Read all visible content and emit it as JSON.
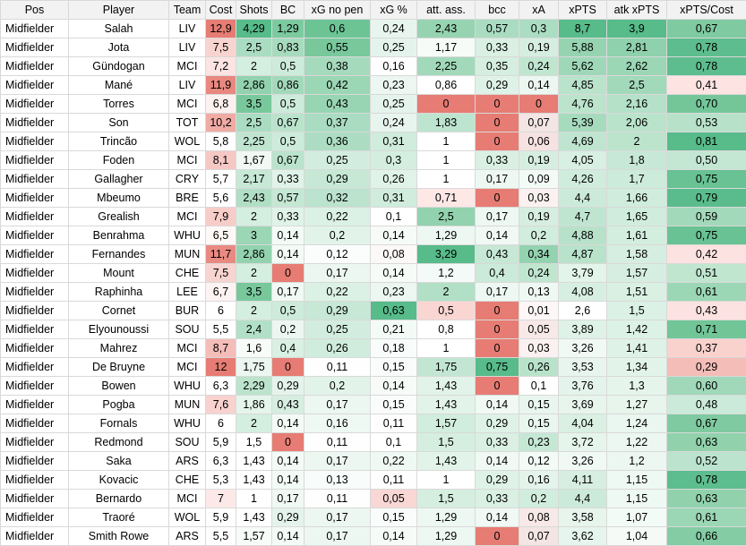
{
  "columns": [
    "Pos",
    "Player",
    "Team",
    "Cost",
    "Shots",
    "BC",
    "xG no pen",
    "xG %",
    "att. ass.",
    "bcc",
    "xA",
    "xPTS",
    "atk xPTS",
    "xPTS/Cost"
  ],
  "rows": [
    {
      "cells": [
        "Midfielder",
        "Salah",
        "LIV",
        "12,9",
        "4,29",
        "1,29",
        "0,6",
        "0,24",
        "2,43",
        "0,57",
        "0,3",
        "8,7",
        "3,9",
        "0,67"
      ],
      "bg": [
        null,
        null,
        null,
        "#e67c73",
        "#57bb8a",
        "#7cca9f",
        "#6cc495",
        "#e8f5ef",
        "#96d4b1",
        "#a9dcc0",
        "#abddc2",
        "#57bb8a",
        "#57bb8a",
        "#7fcaa1"
      ]
    },
    {
      "cells": [
        "Midfielder",
        "Jota",
        "LIV",
        "7,5",
        "2,5",
        "0,83",
        "0,55",
        "0,25",
        "1,17",
        "0,33",
        "0,19",
        "5,88",
        "2,81",
        "0,78"
      ],
      "bg": [
        null,
        null,
        null,
        "#f8d4d0",
        "#aadcc1",
        "#a7dbbe",
        "#78c89c",
        "#e4f4ec",
        "#f6fbf8",
        "#d9f0e3",
        "#d6eee1",
        "#96d4b1",
        "#8ed1ac",
        "#5dbd8e"
      ]
    },
    {
      "cells": [
        "Midfielder",
        "Gündogan",
        "MCI",
        "7,2",
        "2",
        "0,5",
        "0,38",
        "0,16",
        "2,25",
        "0,35",
        "0,24",
        "5,62",
        "2,62",
        "0,78"
      ],
      "bg": [
        null,
        null,
        null,
        "#fbe4e2",
        "#d4eee0",
        "#cdebda",
        "#a6dabd",
        "#fdfefd",
        "#a2d9ba",
        "#d5eee0",
        "#c0e6d0",
        "#9fd8b8",
        "#9bd6b5",
        "#5dbd8e"
      ]
    },
    {
      "cells": [
        "Midfielder",
        "Mané",
        "LIV",
        "11,9",
        "2,86",
        "0,86",
        "0,42",
        "0,23",
        "0,86",
        "0,29",
        "0,14",
        "4,85",
        "2,5",
        "0,41"
      ],
      "bg": [
        null,
        null,
        null,
        "#e98880",
        "#92d2ae",
        "#a3d9bb",
        "#9bd6b5",
        "#ebf7f0",
        "#ffffff",
        "#dff2e8",
        "#ecf7f1",
        "#b9e3cb",
        "#a2d9ba",
        "#fde4e3"
      ]
    },
    {
      "cells": [
        "Midfielder",
        "Torres",
        "MCI",
        "6,8",
        "3,5",
        "0,5",
        "0,43",
        "0,25",
        "0",
        "0",
        "0",
        "4,76",
        "2,16",
        "0,70"
      ],
      "bg": [
        null,
        null,
        null,
        "#fdf1f0",
        "#78c89c",
        "#cdebda",
        "#98d5b3",
        "#e4f4ec",
        "#e67c73",
        "#e67c73",
        "#e67c73",
        "#bce4cd",
        "#b4e1c7",
        "#74c699"
      ]
    },
    {
      "cells": [
        "Midfielder",
        "Son",
        "TOT",
        "10,2",
        "2,5",
        "0,67",
        "0,37",
        "0,24",
        "1,83",
        "0",
        "0,07",
        "5,39",
        "2,06",
        "0,53"
      ],
      "bg": [
        null,
        null,
        null,
        "#f0aba5",
        "#aadcc1",
        "#bae3cc",
        "#a9dcc0",
        "#e8f5ef",
        "#bde4ce",
        "#e67c73",
        "#f3e5e4",
        "#a7dbbe",
        "#b9e3cb",
        "#b7e2c9"
      ]
    },
    {
      "cells": [
        "Midfielder",
        "Trincão",
        "WOL",
        "5,8",
        "2,25",
        "0,5",
        "0,36",
        "0,31",
        "1",
        "0",
        "0,06",
        "4,69",
        "2",
        "0,81"
      ],
      "bg": [
        null,
        null,
        null,
        "#ffffff",
        "#bfe5d0",
        "#cdebda",
        "#acddc2",
        "#cfecdc",
        "#ffffff",
        "#e67c73",
        "#f5e2e1",
        "#bfe5d0",
        "#bce4cd",
        "#57bb8a"
      ]
    },
    {
      "cells": [
        "Midfielder",
        "Foden",
        "MCI",
        "8,1",
        "1,67",
        "0,67",
        "0,25",
        "0,3",
        "1",
        "0,33",
        "0,19",
        "4,05",
        "1,8",
        "0,50"
      ],
      "bg": [
        null,
        null,
        null,
        "#f6c8c4",
        "#f0f9f4",
        "#bae3cc",
        "#d2eddf",
        "#d3eedf",
        "#ffffff",
        "#d9f0e3",
        "#d6eee1",
        "#d8efe3",
        "#c7e8d6",
        "#c3e7d3"
      ]
    },
    {
      "cells": [
        "Midfielder",
        "Gallagher",
        "CRY",
        "5,7",
        "2,17",
        "0,33",
        "0,29",
        "0,26",
        "1",
        "0,17",
        "0,09",
        "4,26",
        "1,7",
        "0,75"
      ],
      "bg": [
        null,
        null,
        null,
        "#ffffff",
        "#c6e8d5",
        "#e0f3e9",
        "#c6e8d5",
        "#e0f3e9",
        "#ffffff",
        "#edf8f2",
        "#f3fbf7",
        "#d0ecdd",
        "#cdebda",
        "#68c293"
      ]
    },
    {
      "cells": [
        "Midfielder",
        "Mbeumo",
        "BRE",
        "5,6",
        "2,43",
        "0,57",
        "0,32",
        "0,31",
        "0,71",
        "0",
        "0,03",
        "4,4",
        "1,66",
        "0,79"
      ],
      "bg": [
        null,
        null,
        null,
        "#ffffff",
        "#b0dfc5",
        "#c5e8d4",
        "#bbe3cd",
        "#cfecdc",
        "#fde8e6",
        "#e67c73",
        "#fbf1f0",
        "#cbeada",
        "#cfecdc",
        "#5abc8c"
      ]
    },
    {
      "cells": [
        "Midfielder",
        "Grealish",
        "MCI",
        "7,9",
        "2",
        "0,33",
        "0,22",
        "0,1",
        "2,5",
        "0,17",
        "0,19",
        "4,7",
        "1,65",
        "0,59"
      ],
      "bg": [
        null,
        null,
        null,
        "#f7cdc9",
        "#d4eee0",
        "#e0f3e9",
        "#dbf1e5",
        "#ffffff",
        "#92d2ae",
        "#edf8f2",
        "#d6eee1",
        "#bfe5d0",
        "#d0ecdd",
        "#a3d9bb"
      ]
    },
    {
      "cells": [
        "Midfielder",
        "Benrahma",
        "WHU",
        "6,5",
        "3",
        "0,14",
        "0,2",
        "0,14",
        "1,29",
        "0,14",
        "0,2",
        "4,88",
        "1,61",
        "0,75"
      ],
      "bg": [
        null,
        null,
        null,
        "#fef8f7",
        "#9bd6b5",
        "#f3fbf7",
        "#e2f4ea",
        "#f6fbf8",
        "#eef8f3",
        "#f0f9f4",
        "#d1eddd",
        "#b7e2c9",
        "#d3eedf",
        "#68c293"
      ]
    },
    {
      "cells": [
        "Midfielder",
        "Fernandes",
        "MUN",
        "11,7",
        "2,86",
        "0,14",
        "0,12",
        "0,08",
        "3,29",
        "0,43",
        "0,34",
        "4,87",
        "1,58",
        "0,42"
      ],
      "bg": [
        null,
        null,
        null,
        "#e98a82",
        "#92d2ae",
        "#f3fbf7",
        "#fbfdfc",
        "#fcf8f8",
        "#57bb8a",
        "#c6e8d5",
        "#93d3af",
        "#b8e3ca",
        "#d6eee1",
        "#fce2e0"
      ]
    },
    {
      "cells": [
        "Midfielder",
        "Mount",
        "CHE",
        "7,5",
        "2",
        "0",
        "0,17",
        "0,14",
        "1,2",
        "0,4",
        "0,24",
        "3,79",
        "1,57",
        "0,51"
      ],
      "bg": [
        null,
        null,
        null,
        "#f8d4d0",
        "#d4eee0",
        "#e67c73",
        "#ecf7f1",
        "#f6fbf8",
        "#f4faf7",
        "#cbeada",
        "#c0e6d0",
        "#e3f4ea",
        "#d6eee1",
        "#c0e6d0"
      ]
    },
    {
      "cells": [
        "Midfielder",
        "Raphinha",
        "LEE",
        "6,7",
        "3,5",
        "0,17",
        "0,22",
        "0,23",
        "2",
        "0,17",
        "0,13",
        "4,08",
        "1,51",
        "0,61"
      ],
      "bg": [
        null,
        null,
        null,
        "#fdf3f2",
        "#78c89c",
        "#f0f9f4",
        "#dbf1e5",
        "#ebf7f0",
        "#b2e0c6",
        "#edf8f2",
        "#eff9f3",
        "#d7efe2",
        "#d9f0e3",
        "#9bd6b5"
      ]
    },
    {
      "cells": [
        "Midfielder",
        "Cornet",
        "BUR",
        "6",
        "2",
        "0,5",
        "0,29",
        "0,63",
        "0,5",
        "0",
        "0,01",
        "2,6",
        "1,5",
        "0,43"
      ],
      "bg": [
        null,
        null,
        null,
        "#ffffff",
        "#d4eee0",
        "#cdebda",
        "#c6e8d5",
        "#57bb8a",
        "#fad6d3",
        "#e67c73",
        "#fdf7f7",
        "#ffffff",
        "#dbf1e5",
        "#fce2e0"
      ]
    },
    {
      "cells": [
        "Midfielder",
        "Elyounoussi",
        "SOU",
        "5,5",
        "2,4",
        "0,2",
        "0,25",
        "0,21",
        "0,8",
        "0",
        "0,05",
        "3,89",
        "1,42",
        "0,71"
      ],
      "bg": [
        null,
        null,
        null,
        "#ffffff",
        "#b2e0c6",
        "#ecf7f1",
        "#d2eddf",
        "#f3fbf7",
        "#ffffff",
        "#e67c73",
        "#f7e9e8",
        "#dff2e8",
        "#ddf2e7",
        "#71c597"
      ]
    },
    {
      "cells": [
        "Midfielder",
        "Mahrez",
        "MCI",
        "8,7",
        "1,6",
        "0,4",
        "0,26",
        "0,18",
        "1",
        "0",
        "0,03",
        "3,26",
        "1,41",
        "0,37"
      ],
      "bg": [
        null,
        null,
        null,
        "#f4bdb8",
        "#f7fcf9",
        "#d9f0e3",
        "#cfecdc",
        "#f8fcfa",
        "#ffffff",
        "#e67c73",
        "#fbf1f0",
        "#f1f9f5",
        "#dff2e8",
        "#f9d1cd"
      ]
    },
    {
      "cells": [
        "Midfielder",
        "De Bruyne",
        "MCI",
        "12",
        "1,75",
        "0",
        "0,11",
        "0,15",
        "1,75",
        "0,75",
        "0,26",
        "3,53",
        "1,34",
        "0,29"
      ],
      "bg": [
        null,
        null,
        null,
        "#e67c73",
        "#ebf7f0",
        "#e67c73",
        "#fdfefd",
        "#f9fcfa",
        "#c2e6d2",
        "#57bb8a",
        "#b8e3ca",
        "#e8f5ef",
        "#e2f4ea",
        "#f4bdb8"
      ]
    },
    {
      "cells": [
        "Midfielder",
        "Bowen",
        "WHU",
        "6,3",
        "2,29",
        "0,29",
        "0,2",
        "0,14",
        "1,43",
        "0",
        "0,1",
        "3,76",
        "1,3",
        "0,60"
      ],
      "bg": [
        null,
        null,
        null,
        "#ffffff",
        "#bce4cd",
        "#e4f4ec",
        "#e2f4ea",
        "#f6fbf8",
        "#e2f4ea",
        "#e67c73",
        "#fdfefd",
        "#e4f4ec",
        "#e5f5ec",
        "#a0d8b9"
      ]
    },
    {
      "cells": [
        "Midfielder",
        "Pogba",
        "MUN",
        "7,6",
        "1,86",
        "0,43",
        "0,17",
        "0,15",
        "1,43",
        "0,14",
        "0,15",
        "3,69",
        "1,27",
        "0,48"
      ],
      "bg": [
        null,
        null,
        null,
        "#f8d2ce",
        "#e5f5ec",
        "#d6eee1",
        "#ecf7f1",
        "#f9fcfa",
        "#e2f4ea",
        "#f0f9f4",
        "#e9f6ef",
        "#e7f5ed",
        "#e7f5ed",
        "#cbeada"
      ]
    },
    {
      "cells": [
        "Midfielder",
        "Fornals",
        "WHU",
        "6",
        "2",
        "0,14",
        "0,16",
        "0,11",
        "1,57",
        "0,29",
        "0,15",
        "4,04",
        "1,24",
        "0,67"
      ],
      "bg": [
        null,
        null,
        null,
        "#ffffff",
        "#d4eee0",
        "#f3fbf7",
        "#eff9f3",
        "#fffefe",
        "#d1eddd",
        "#dff2e8",
        "#e9f6ef",
        "#d9f0e3",
        "#eaf6f0",
        "#7fcaa1"
      ]
    },
    {
      "cells": [
        "Midfielder",
        "Redmond",
        "SOU",
        "5,9",
        "1,5",
        "0",
        "0,11",
        "0,1",
        "1,5",
        "0,33",
        "0,23",
        "3,72",
        "1,22",
        "0,63"
      ],
      "bg": [
        null,
        null,
        null,
        "#ffffff",
        "#ffffff",
        "#e67c73",
        "#fdfefd",
        "#ffffff",
        "#d5eee0",
        "#d9f0e3",
        "#c5e8d4",
        "#e5f5ec",
        "#ebf7f0",
        "#91d2ad"
      ]
    },
    {
      "cells": [
        "Midfielder",
        "Saka",
        "ARS",
        "6,3",
        "1,43",
        "0,14",
        "0,17",
        "0,22",
        "1,43",
        "0,14",
        "0,12",
        "3,26",
        "1,2",
        "0,52"
      ],
      "bg": [
        null,
        null,
        null,
        "#ffffff",
        "#ffffff",
        "#f3fbf7",
        "#ecf7f1",
        "#eff9f3",
        "#e2f4ea",
        "#f0f9f4",
        "#f3fbf7",
        "#f1f9f5",
        "#ecf7f1",
        "#bbe3cd"
      ]
    },
    {
      "cells": [
        "Midfielder",
        "Kovacic",
        "CHE",
        "5,3",
        "1,43",
        "0,14",
        "0,13",
        "0,11",
        "1",
        "0,29",
        "0,16",
        "4,11",
        "1,15",
        "0,78"
      ],
      "bg": [
        null,
        null,
        null,
        "#ffffff",
        "#ffffff",
        "#f3fbf7",
        "#f8fcfa",
        "#fffefe",
        "#ffffff",
        "#dff2e8",
        "#e4f4ec",
        "#d6eee1",
        "#eff9f3",
        "#5dbd8e"
      ]
    },
    {
      "cells": [
        "Midfielder",
        "Bernardo",
        "MCI",
        "7",
        "1",
        "0,17",
        "0,11",
        "0,05",
        "1,5",
        "0,33",
        "0,2",
        "4,4",
        "1,15",
        "0,63"
      ],
      "bg": [
        null,
        null,
        null,
        "#fce9e7",
        "#ffffff",
        "#f0f9f4",
        "#fdfefd",
        "#f8d7d4",
        "#d5eee0",
        "#d9f0e3",
        "#d1eddd",
        "#cbeada",
        "#eff9f3",
        "#91d2ad"
      ]
    },
    {
      "cells": [
        "Midfielder",
        "Traoré",
        "WOL",
        "5,9",
        "1,43",
        "0,29",
        "0,17",
        "0,15",
        "1,29",
        "0,14",
        "0,08",
        "3,58",
        "1,07",
        "0,61"
      ],
      "bg": [
        null,
        null,
        null,
        "#ffffff",
        "#ffffff",
        "#e4f4ec",
        "#ecf7f1",
        "#f9fcfa",
        "#eef8f3",
        "#f0f9f4",
        "#f7e9e8",
        "#e7f5ed",
        "#f3fbf7",
        "#9bd6b5"
      ]
    },
    {
      "cells": [
        "Midfielder",
        "Smith Rowe",
        "ARS",
        "5,5",
        "1,57",
        "0,14",
        "0,17",
        "0,14",
        "1,29",
        "0",
        "0,07",
        "3,62",
        "1,04",
        "0,66"
      ],
      "bg": [
        null,
        null,
        null,
        "#ffffff",
        "#f7fcf9",
        "#f3fbf7",
        "#ecf7f1",
        "#f6fbf8",
        "#eef8f3",
        "#e67c73",
        "#f3e5e4",
        "#e6f5ed",
        "#f5faf7",
        "#83cca4"
      ]
    }
  ]
}
